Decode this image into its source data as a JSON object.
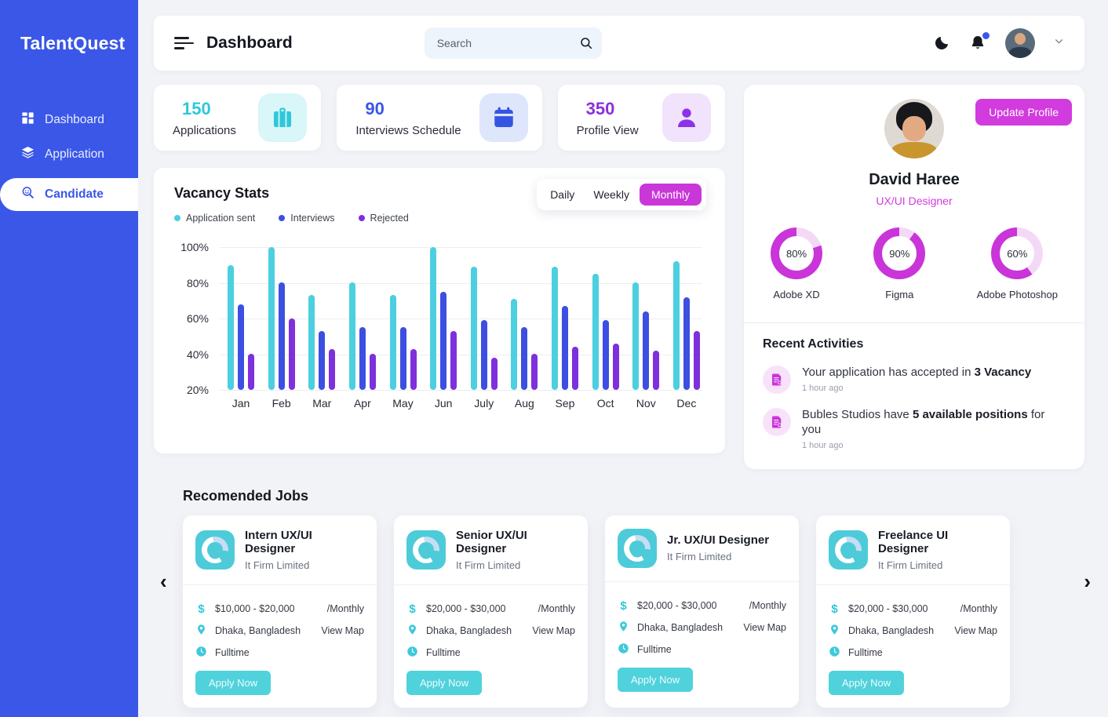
{
  "colors": {
    "sidebar_blue": "#3A57E8",
    "teal": "#2FC8D9",
    "bar_teal": "#4CCFE0",
    "bar_blue": "#3D4FE1",
    "bar_purple": "#7E30DC",
    "magenta": "#C935D9",
    "donut_track": "#F4D9F7",
    "purple": "#8B2FD9"
  },
  "sidebar": {
    "logo": "TalentQuest",
    "items": [
      {
        "label": "Dashboard",
        "active": false
      },
      {
        "label": "Application",
        "active": false
      },
      {
        "label": "Candidate",
        "active": true
      }
    ]
  },
  "topbar": {
    "title": "Dashboard",
    "search_placeholder": "Search",
    "search_value": ""
  },
  "stats": [
    {
      "value": "150",
      "label": "Applications",
      "icon": "briefcase-icon"
    },
    {
      "value": "90",
      "label": "Interviews Schedule",
      "icon": "calendar-icon"
    },
    {
      "value": "350",
      "label": "Profile View",
      "icon": "user-icon"
    }
  ],
  "vacancy": {
    "title": "Vacancy Stats",
    "toggles": [
      {
        "label": "Daily",
        "active": false
      },
      {
        "label": "Weekly",
        "active": false
      },
      {
        "label": "Monthly",
        "active": true
      }
    ],
    "legend": [
      {
        "label": "Application sent",
        "color": "#4CCFE0"
      },
      {
        "label": "Interviews",
        "color": "#3D4FE1"
      },
      {
        "label": "Rejected",
        "color": "#7E30DC"
      }
    ]
  },
  "chart_data": {
    "type": "bar",
    "title": "Vacancy Stats",
    "categories": [
      "Jan",
      "Feb",
      "Mar",
      "Apr",
      "May",
      "Jun",
      "July",
      "Aug",
      "Sep",
      "Oct",
      "Nov",
      "Dec"
    ],
    "series": [
      {
        "name": "Application sent",
        "color": "#4CCFE0",
        "values": [
          90,
          100,
          73,
          80,
          73,
          100,
          89,
          71,
          89,
          85,
          80,
          92
        ]
      },
      {
        "name": "Interviews",
        "color": "#3D4FE1",
        "values": [
          68,
          80,
          53,
          55,
          55,
          75,
          59,
          55,
          67,
          59,
          64,
          72
        ]
      },
      {
        "name": "Rejected",
        "color": "#7E30DC",
        "values": [
          40,
          60,
          43,
          40,
          43,
          53,
          38,
          40,
          44,
          46,
          42,
          53
        ]
      }
    ],
    "xlabel": "",
    "ylabel": "",
    "ylim": [
      20,
      100
    ],
    "yticks": [
      "100%",
      "80%",
      "60%",
      "40%",
      "20%"
    ],
    "grid": true,
    "legend_position": "top-left"
  },
  "profile": {
    "name": "David Haree",
    "role": "UX/UI Designer",
    "update_button": "Update Profile",
    "skills": [
      {
        "label": "Adobe XD",
        "percent": 80,
        "percent_label": "80%"
      },
      {
        "label": "Figma",
        "percent": 90,
        "percent_label": "90%"
      },
      {
        "label": "Adobe Photoshop",
        "percent": 60,
        "percent_label": "60%"
      }
    ]
  },
  "activities": {
    "title": "Recent Activities",
    "items": [
      {
        "pre": "Your application has accepted in ",
        "bold": "3 Vacancy",
        "post": "",
        "time": "1 hour ago"
      },
      {
        "pre": "Bubles Studios have ",
        "bold": "5 available positions",
        "post": " for you",
        "time": "1 hour ago"
      }
    ]
  },
  "jobs": {
    "title": "Recomended Jobs",
    "cards": [
      {
        "title": "Intern UX/UI Designer",
        "company": "It Firm Limited",
        "salary": "$10,000 - $20,000",
        "period": "/Monthly",
        "location": "Dhaka, Bangladesh",
        "map": "View Map",
        "type": "Fulltime",
        "apply": "Apply Now"
      },
      {
        "title": "Senior UX/UI Designer",
        "company": "It Firm Limited",
        "salary": "$20,000 - $30,000",
        "period": "/Monthly",
        "location": "Dhaka, Bangladesh",
        "map": "View Map",
        "type": "Fulltime",
        "apply": "Apply Now"
      },
      {
        "title": "Jr. UX/UI Designer",
        "company": "It Firm Limited",
        "salary": "$20,000 - $30,000",
        "period": "/Monthly",
        "location": "Dhaka, Bangladesh",
        "map": "View Map",
        "type": "Fulltime",
        "apply": "Apply Now"
      },
      {
        "title": "Freelance UI Designer",
        "company": "It Firm Limited",
        "salary": "$20,000 - $30,000",
        "period": "/Monthly",
        "location": "Dhaka, Bangladesh",
        "map": "View Map",
        "type": "Fulltime",
        "apply": "Apply Now"
      }
    ]
  }
}
